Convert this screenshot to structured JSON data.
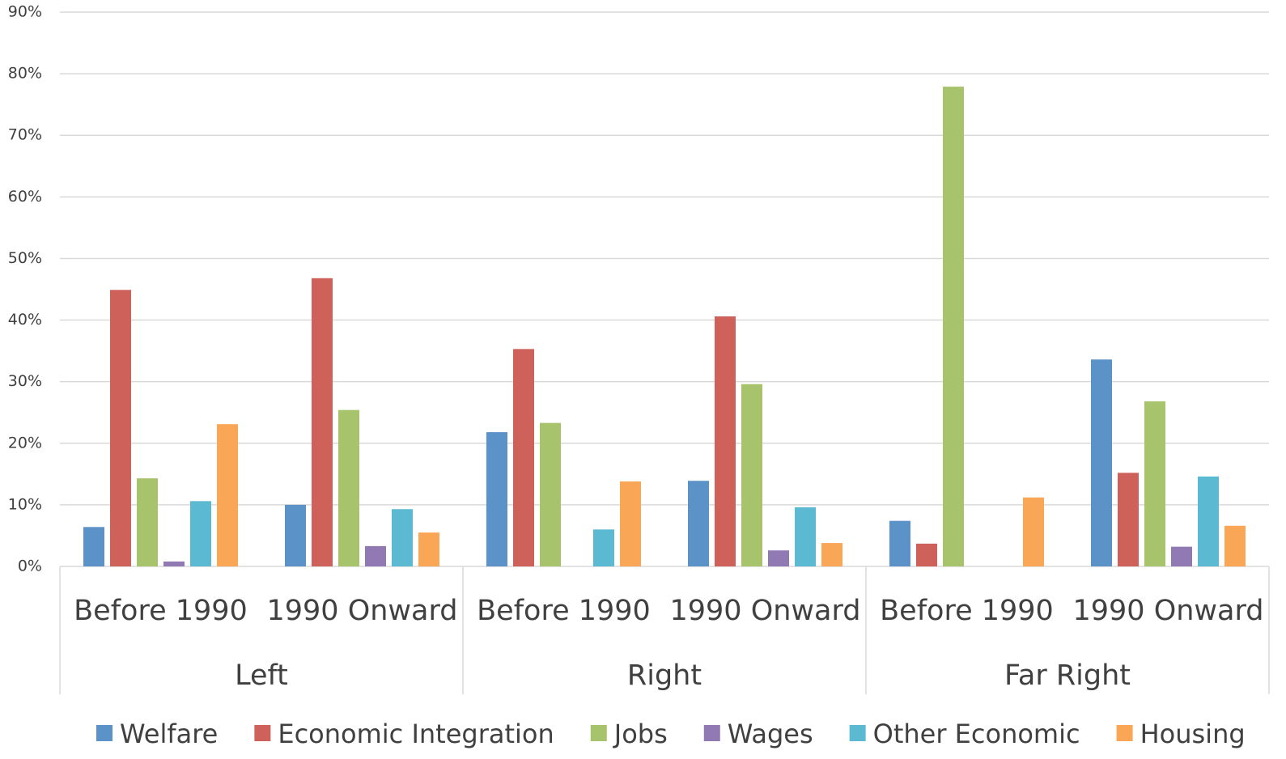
{
  "chart_data": {
    "type": "bar",
    "groups": [
      "Left",
      "Right",
      "Far Right"
    ],
    "categories": [
      "Before 1990",
      "1990 Onward",
      "Before 1990",
      "1990 Onward",
      "Before 1990",
      "1990 Onward"
    ],
    "series": [
      {
        "name": "Welfare",
        "color": "#5b93c9",
        "values": [
          6.4,
          10.0,
          21.8,
          13.9,
          7.4,
          33.6
        ]
      },
      {
        "name": "Economic Integration",
        "color": "#ce625b",
        "values": [
          44.9,
          46.8,
          35.3,
          40.6,
          3.7,
          15.2
        ]
      },
      {
        "name": "Jobs",
        "color": "#a7c36b",
        "values": [
          14.3,
          25.4,
          23.3,
          29.6,
          77.9,
          26.8
        ]
      },
      {
        "name": "Wages",
        "color": "#9179b3",
        "values": [
          0.8,
          3.3,
          0,
          2.6,
          0,
          3.2
        ]
      },
      {
        "name": "Other Economic",
        "color": "#5bbad2",
        "values": [
          10.6,
          9.3,
          6.0,
          9.6,
          0,
          14.6
        ]
      },
      {
        "name": "Housing",
        "color": "#f9a656",
        "values": [
          23.1,
          5.5,
          13.8,
          3.8,
          11.2,
          6.6
        ]
      }
    ],
    "ylim": [
      0,
      90
    ],
    "yticks": [
      {
        "value": 0,
        "label": "0%"
      },
      {
        "value": 10,
        "label": "10%"
      },
      {
        "value": 20,
        "label": "20%"
      },
      {
        "value": 30,
        "label": "30%"
      },
      {
        "value": 40,
        "label": "40%"
      },
      {
        "value": 50,
        "label": "50%"
      },
      {
        "value": 60,
        "label": "60%"
      },
      {
        "value": 70,
        "label": "70%"
      },
      {
        "value": 80,
        "label": "80%"
      },
      {
        "value": 90,
        "label": "90%"
      }
    ],
    "grid": true,
    "legend": "bottom"
  }
}
